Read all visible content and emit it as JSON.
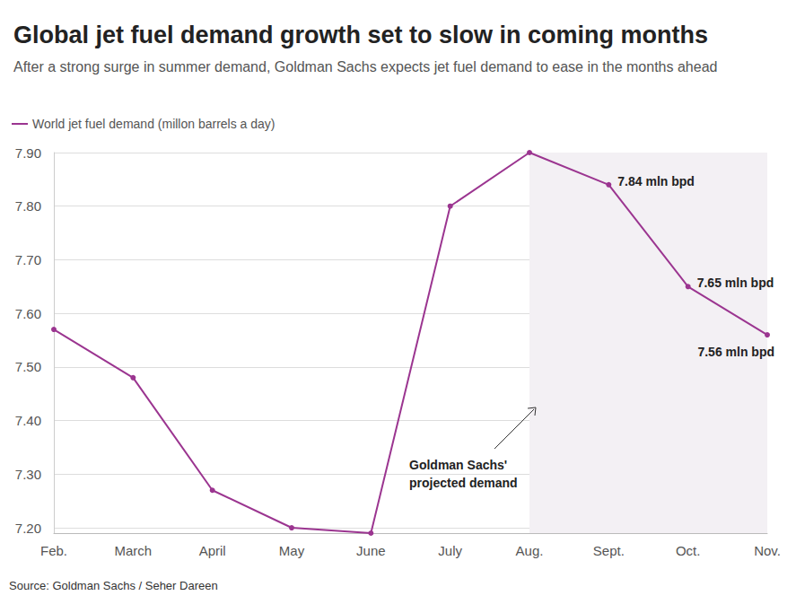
{
  "chart_data": {
    "type": "line",
    "title": "Global jet fuel demand growth set to slow in coming months",
    "subtitle": "After a strong surge in summer demand, Goldman Sachs expects jet fuel demand to ease in the months ahead",
    "source": "Source: Goldman Sachs / Seher Dareen",
    "categories": [
      "Feb.",
      "March",
      "April",
      "May",
      "June",
      "July",
      "Aug.",
      "Sept.",
      "Oct.",
      "Nov."
    ],
    "series": [
      {
        "name": "World jet fuel demand (millon barrels a day)",
        "color": "#9b3590",
        "marker": "circle",
        "line_style": "solid",
        "values": [
          7.57,
          7.48,
          7.27,
          7.2,
          7.19,
          7.8,
          7.9,
          7.84,
          7.65,
          7.56
        ],
        "value_labels": [
          null,
          null,
          null,
          null,
          null,
          null,
          null,
          "7.84 mln bpd",
          "7.65 mln bpd",
          "7.56 mln bpd"
        ]
      }
    ],
    "data_labels": true,
    "shaded_region": {
      "from": "Aug.",
      "to": "Nov.",
      "label": "Goldman Sachs' projected demand",
      "color": "#f3f0f4"
    },
    "ylim": [
      7.19,
      7.9
    ],
    "yticks": [
      {
        "value": 7.2,
        "label": "7.20"
      },
      {
        "value": 7.3,
        "label": "7.30"
      },
      {
        "value": 7.4,
        "label": "7.40"
      },
      {
        "value": 7.5,
        "label": "7.50"
      },
      {
        "value": 7.6,
        "label": "7.60"
      },
      {
        "value": 7.7,
        "label": "7.70"
      },
      {
        "value": 7.8,
        "label": "7.80"
      },
      {
        "value": 7.9,
        "label": "7.90"
      }
    ],
    "grid": true,
    "legend": "top-left"
  }
}
